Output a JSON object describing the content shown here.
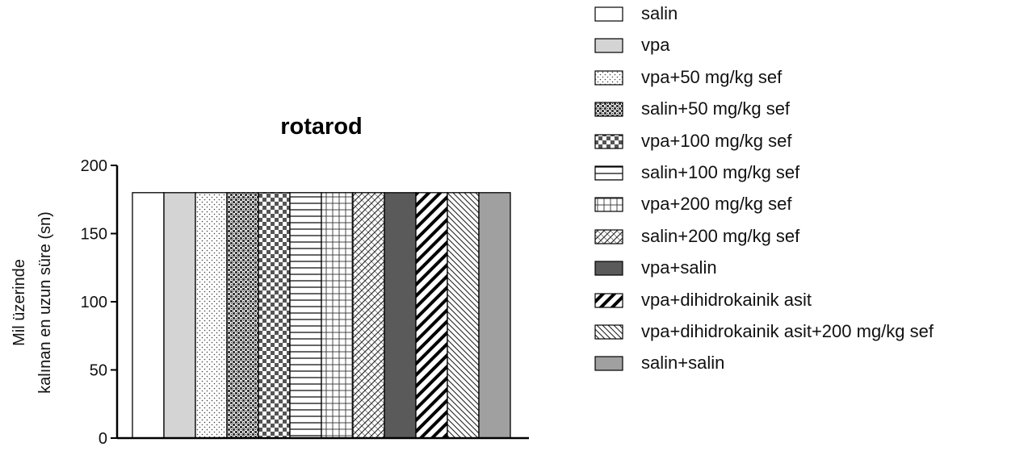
{
  "chart_data": {
    "type": "bar",
    "title": "rotarod",
    "ylabel_lines": [
      "Mil üzerinde",
      "kalınan en uzun süre (sn)"
    ],
    "xlabel": "",
    "ylim": [
      0,
      200
    ],
    "yticks": [
      0,
      50,
      100,
      150,
      200
    ],
    "legend_position": "right",
    "categories": [
      "salin",
      "vpa",
      "vpa+50 mg/kg sef",
      "salin+50 mg/kg sef",
      "vpa+100 mg/kg sef",
      "salin+100 mg/kg sef",
      "vpa+200 mg/kg sef",
      "salin+200 mg/kg sef",
      "vpa+salin",
      "vpa+dihidrokainik asit",
      "vpa+dihidrokainik asit+200 mg/kg sef",
      "salin+salin"
    ],
    "values": [
      180,
      180,
      180,
      180,
      180,
      180,
      180,
      180,
      180,
      180,
      180,
      180
    ],
    "fills": [
      "white",
      "lightgray",
      "dots",
      "crosshatch-dark",
      "checker",
      "hlines",
      "grid",
      "diag-hatch",
      "darkgray",
      "thick-diag",
      "thin-diag",
      "gray"
    ],
    "colors": {
      "lightgray": "#d4d4d4",
      "darkgray": "#5a5a5a",
      "gray": "#a0a0a0",
      "axis": "#000000"
    }
  }
}
